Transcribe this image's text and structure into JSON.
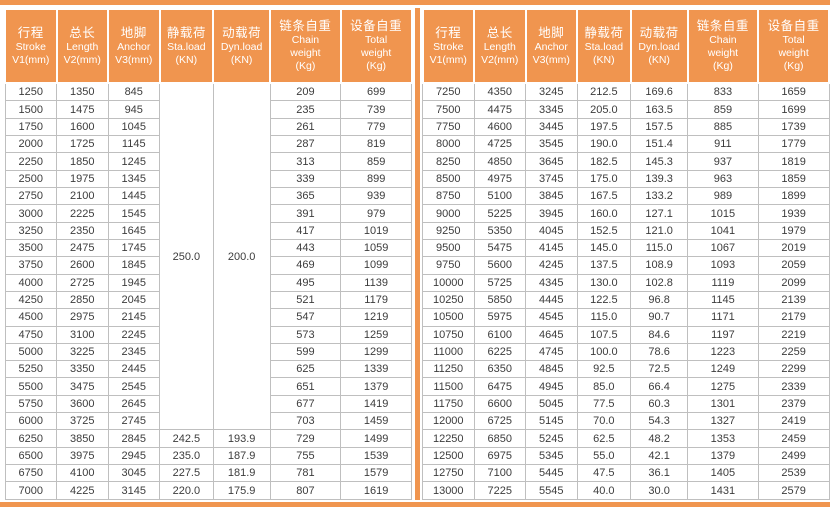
{
  "palette": {
    "accent_orange": "#F0954F",
    "cell_border": "#BFBFBF",
    "header_text": "#FFFFFF",
    "body_text": "#3C3C3C"
  },
  "table": {
    "columns": [
      {
        "lines": [
          "行程",
          "Stroke",
          "V1(mm)"
        ]
      },
      {
        "lines": [
          "总长",
          "Length",
          "V2(mm)"
        ]
      },
      {
        "lines": [
          "地脚",
          "Anchor",
          "V3(mm)"
        ]
      },
      {
        "lines": [
          "静载荷",
          "Sta.load",
          "(KN)"
        ]
      },
      {
        "lines": [
          "动载荷",
          "Dyn.load",
          "(KN)"
        ]
      },
      {
        "lines": [
          "链条自重",
          "Chain",
          "weight",
          "(Kg)"
        ]
      },
      {
        "lines": [
          "设备自重",
          "Total",
          "weight",
          "(Kg)"
        ]
      }
    ],
    "left": {
      "merged_cells": [
        {
          "row": 0,
          "col": 3,
          "rowspan": 20,
          "value": "250.0"
        },
        {
          "row": 0,
          "col": 4,
          "rowspan": 20,
          "value": "200.0"
        }
      ],
      "rows": [
        [
          "1250",
          "1350",
          "845",
          null,
          null,
          "209",
          "699"
        ],
        [
          "1500",
          "1475",
          "945",
          null,
          null,
          "235",
          "739"
        ],
        [
          "1750",
          "1600",
          "1045",
          null,
          null,
          "261",
          "779"
        ],
        [
          "2000",
          "1725",
          "1145",
          null,
          null,
          "287",
          "819"
        ],
        [
          "2250",
          "1850",
          "1245",
          null,
          null,
          "313",
          "859"
        ],
        [
          "2500",
          "1975",
          "1345",
          null,
          null,
          "339",
          "899"
        ],
        [
          "2750",
          "2100",
          "1445",
          null,
          null,
          "365",
          "939"
        ],
        [
          "3000",
          "2225",
          "1545",
          null,
          null,
          "391",
          "979"
        ],
        [
          "3250",
          "2350",
          "1645",
          null,
          null,
          "417",
          "1019"
        ],
        [
          "3500",
          "2475",
          "1745",
          null,
          null,
          "443",
          "1059"
        ],
        [
          "3750",
          "2600",
          "1845",
          null,
          null,
          "469",
          "1099"
        ],
        [
          "4000",
          "2725",
          "1945",
          null,
          null,
          "495",
          "1139"
        ],
        [
          "4250",
          "2850",
          "2045",
          null,
          null,
          "521",
          "1179"
        ],
        [
          "4500",
          "2975",
          "2145",
          null,
          null,
          "547",
          "1219"
        ],
        [
          "4750",
          "3100",
          "2245",
          null,
          null,
          "573",
          "1259"
        ],
        [
          "5000",
          "3225",
          "2345",
          null,
          null,
          "599",
          "1299"
        ],
        [
          "5250",
          "3350",
          "2445",
          null,
          null,
          "625",
          "1339"
        ],
        [
          "5500",
          "3475",
          "2545",
          null,
          null,
          "651",
          "1379"
        ],
        [
          "5750",
          "3600",
          "2645",
          null,
          null,
          "677",
          "1419"
        ],
        [
          "6000",
          "3725",
          "2745",
          null,
          null,
          "703",
          "1459"
        ],
        [
          "6250",
          "3850",
          "2845",
          "242.5",
          "193.9",
          "729",
          "1499"
        ],
        [
          "6500",
          "3975",
          "2945",
          "235.0",
          "187.9",
          "755",
          "1539"
        ],
        [
          "6750",
          "4100",
          "3045",
          "227.5",
          "181.9",
          "781",
          "1579"
        ],
        [
          "7000",
          "4225",
          "3145",
          "220.0",
          "175.9",
          "807",
          "1619"
        ]
      ]
    },
    "right": {
      "merged_cells": [],
      "rows": [
        [
          "7250",
          "4350",
          "3245",
          "212.5",
          "169.6",
          "833",
          "1659"
        ],
        [
          "7500",
          "4475",
          "3345",
          "205.0",
          "163.5",
          "859",
          "1699"
        ],
        [
          "7750",
          "4600",
          "3445",
          "197.5",
          "157.5",
          "885",
          "1739"
        ],
        [
          "8000",
          "4725",
          "3545",
          "190.0",
          "151.4",
          "911",
          "1779"
        ],
        [
          "8250",
          "4850",
          "3645",
          "182.5",
          "145.3",
          "937",
          "1819"
        ],
        [
          "8500",
          "4975",
          "3745",
          "175.0",
          "139.3",
          "963",
          "1859"
        ],
        [
          "8750",
          "5100",
          "3845",
          "167.5",
          "133.2",
          "989",
          "1899"
        ],
        [
          "9000",
          "5225",
          "3945",
          "160.0",
          "127.1",
          "1015",
          "1939"
        ],
        [
          "9250",
          "5350",
          "4045",
          "152.5",
          "121.0",
          "1041",
          "1979"
        ],
        [
          "9500",
          "5475",
          "4145",
          "145.0",
          "115.0",
          "1067",
          "2019"
        ],
        [
          "9750",
          "5600",
          "4245",
          "137.5",
          "108.9",
          "1093",
          "2059"
        ],
        [
          "10000",
          "5725",
          "4345",
          "130.0",
          "102.8",
          "1119",
          "2099"
        ],
        [
          "10250",
          "5850",
          "4445",
          "122.5",
          "96.8",
          "1145",
          "2139"
        ],
        [
          "10500",
          "5975",
          "4545",
          "115.0",
          "90.7",
          "1171",
          "2179"
        ],
        [
          "10750",
          "6100",
          "4645",
          "107.5",
          "84.6",
          "1197",
          "2219"
        ],
        [
          "11000",
          "6225",
          "4745",
          "100.0",
          "78.6",
          "1223",
          "2259"
        ],
        [
          "11250",
          "6350",
          "4845",
          "92.5",
          "72.5",
          "1249",
          "2299"
        ],
        [
          "11500",
          "6475",
          "4945",
          "85.0",
          "66.4",
          "1275",
          "2339"
        ],
        [
          "11750",
          "6600",
          "5045",
          "77.5",
          "60.3",
          "1301",
          "2379"
        ],
        [
          "12000",
          "6725",
          "5145",
          "70.0",
          "54.3",
          "1327",
          "2419"
        ],
        [
          "12250",
          "6850",
          "5245",
          "62.5",
          "48.2",
          "1353",
          "2459"
        ],
        [
          "12500",
          "6975",
          "5345",
          "55.0",
          "42.1",
          "1379",
          "2499"
        ],
        [
          "12750",
          "7100",
          "5445",
          "47.5",
          "36.1",
          "1405",
          "2539"
        ],
        [
          "13000",
          "7225",
          "5545",
          "40.0",
          "30.0",
          "1431",
          "2579"
        ]
      ]
    }
  }
}
